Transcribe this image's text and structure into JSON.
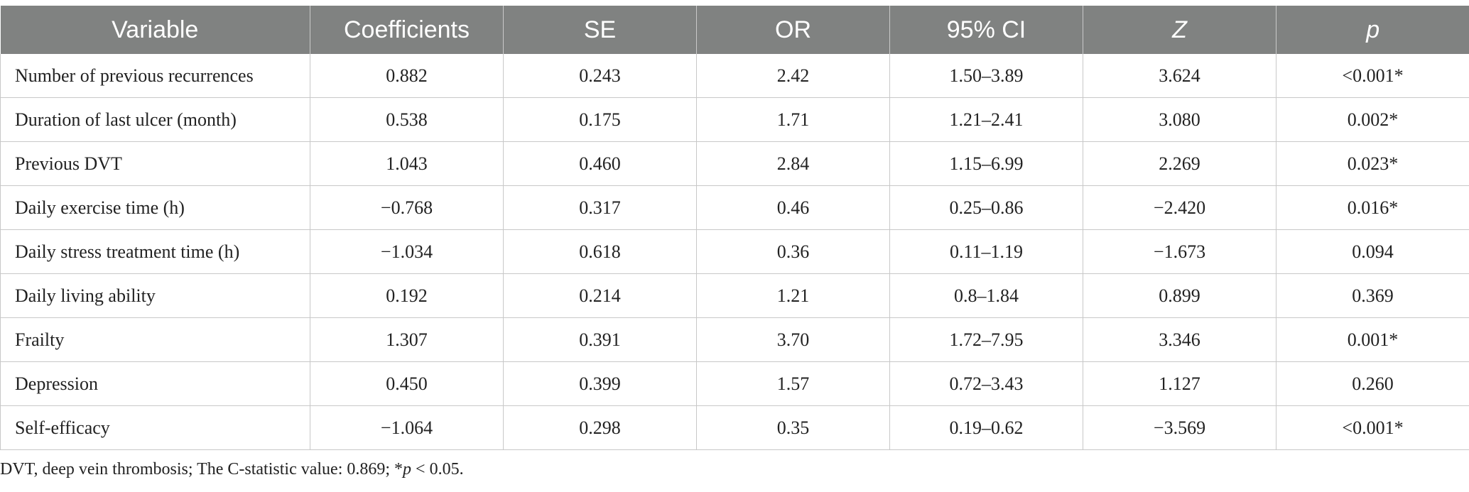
{
  "table": {
    "headers": [
      {
        "label": "Variable",
        "italic": false
      },
      {
        "label": "Coefficients",
        "italic": false
      },
      {
        "label": "SE",
        "italic": false
      },
      {
        "label": "OR",
        "italic": false
      },
      {
        "label": "95% CI",
        "italic": false
      },
      {
        "label": "Z",
        "italic": true
      },
      {
        "label": "p",
        "italic": true
      }
    ],
    "rows": [
      [
        "Number of previous recurrences",
        "0.882",
        "0.243",
        "2.42",
        "1.50–3.89",
        "3.624",
        "<0.001*"
      ],
      [
        "Duration of last ulcer (month)",
        "0.538",
        "0.175",
        "1.71",
        "1.21–2.41",
        "3.080",
        "0.002*"
      ],
      [
        "Previous DVT",
        "1.043",
        "0.460",
        "2.84",
        "1.15–6.99",
        "2.269",
        "0.023*"
      ],
      [
        "Daily exercise time (h)",
        "−0.768",
        "0.317",
        "0.46",
        "0.25–0.86",
        "−2.420",
        "0.016*"
      ],
      [
        "Daily stress treatment time (h)",
        "−1.034",
        "0.618",
        "0.36",
        "0.11–1.19",
        "−1.673",
        "0.094"
      ],
      [
        "Daily living ability",
        "0.192",
        "0.214",
        "1.21",
        "0.8–1.84",
        "0.899",
        "0.369"
      ],
      [
        "Frailty",
        "1.307",
        "0.391",
        "3.70",
        "1.72–7.95",
        "3.346",
        "0.001*"
      ],
      [
        "Depression",
        "0.450",
        "0.399",
        "1.57",
        "0.72–3.43",
        "1.127",
        "0.260"
      ],
      [
        "Self-efficacy",
        "−1.064",
        "0.298",
        "0.35",
        "0.19–0.62",
        "−3.569",
        "<0.001*"
      ]
    ]
  },
  "footnote": {
    "part1": "DVT, deep vein thrombosis; The C-statistic value: 0.869; *",
    "part2": "p",
    "part3": " < 0.05."
  }
}
